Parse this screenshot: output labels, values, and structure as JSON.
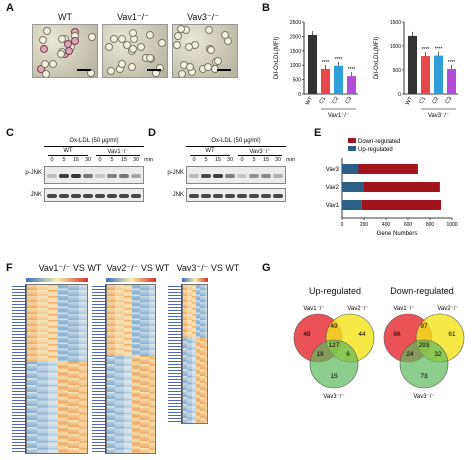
{
  "panels": {
    "A": "A",
    "B": "B",
    "C": "C",
    "D": "D",
    "E": "E",
    "F": "F",
    "G": "G"
  },
  "panel_a": {
    "labels": [
      "WT",
      "Vav1⁻/⁻",
      "Vav3⁻/⁻"
    ]
  },
  "panel_b": {
    "left": {
      "ylabel": "DiI-OxLDL(MFI)",
      "yticks": [
        "0",
        "500",
        "1000",
        "1500",
        "2000",
        "2500"
      ],
      "categories": [
        "WT",
        "C1",
        "C2",
        "C3"
      ],
      "values": [
        2050,
        870,
        980,
        620
      ],
      "colors": [
        "#333333",
        "#e8474c",
        "#2f9fd8",
        "#b24bd6"
      ],
      "stars": [
        "",
        "****",
        "****",
        "****"
      ],
      "group_label": "Vav1⁻/⁻"
    },
    "right": {
      "ylabel": "DiI-OxLDL(MFI)",
      "yticks": [
        "0",
        "500",
        "1000",
        "1500"
      ],
      "categories": [
        "WT",
        "C1",
        "C2",
        "C3"
      ],
      "values": [
        1210,
        790,
        800,
        520
      ],
      "colors": [
        "#333333",
        "#e8474c",
        "#2f9fd8",
        "#b24bd6"
      ],
      "stars": [
        "",
        "****",
        "****",
        "****"
      ],
      "group_label": "Vav3⁻/⁻"
    }
  },
  "panel_c": {
    "treatment": "Ox-LDL (50 μg/ml)",
    "groups": [
      "WT",
      "Vav1⁻/⁻"
    ],
    "times": [
      "0",
      "5",
      "15",
      "30",
      "0",
      "5",
      "15",
      "30"
    ],
    "unit": "min",
    "rows": [
      "p-JNK",
      "JNK"
    ]
  },
  "panel_d": {
    "treatment": "Ox-LDL (50 μg/ml)",
    "groups": [
      "WT",
      "Vav3⁻/⁻"
    ],
    "times": [
      "0",
      "5",
      "15",
      "30",
      "0",
      "5",
      "15",
      "30"
    ],
    "unit": "min",
    "rows": [
      "p-JNK",
      "JNK"
    ]
  },
  "chart_data": [
    {
      "type": "bar",
      "title": "",
      "categories": [
        "WT",
        "C1",
        "C2",
        "C3"
      ],
      "values": [
        2050,
        870,
        980,
        620
      ],
      "ylabel": "DiI-OxLDL(MFI)",
      "ylim": [
        0,
        2500
      ]
    },
    {
      "type": "bar",
      "title": "",
      "categories": [
        "WT",
        "C1",
        "C2",
        "C3"
      ],
      "values": [
        1210,
        790,
        800,
        520
      ],
      "ylabel": "DiI-OxLDL(MFI)",
      "ylim": [
        0,
        1500
      ]
    },
    {
      "type": "bar",
      "orientation": "horizontal-stacked",
      "categories": [
        "Vav3",
        "Vav2",
        "Vav1"
      ],
      "series": [
        {
          "name": "Up-regulated",
          "values": [
            150,
            200,
            180
          ],
          "color": "#2b5f86"
        },
        {
          "name": "Down-regulated",
          "values": [
            540,
            690,
            720
          ],
          "color": "#a3131b"
        }
      ],
      "xlabel": "Gene Numbers",
      "xticks": [
        "0",
        "200",
        "400",
        "600",
        "800",
        "1000"
      ],
      "xlim": [
        0,
        1000
      ],
      "legend": "top"
    }
  ],
  "panel_f": {
    "titles": [
      "Vav1⁻/⁻ VS WT",
      "Vav2⁻/⁻ VS WT",
      "Vav3⁻/⁻ VS WT"
    ]
  },
  "panel_g": {
    "up": {
      "title": "Up-regulated",
      "sets": [
        "Vav1⁻/⁻",
        "Vav2⁻/⁻",
        "Vav3⁻/⁻"
      ],
      "regions": {
        "only1": "48",
        "only2": "44",
        "only3": "15",
        "v12": "49",
        "v13": "19",
        "v23": "6",
        "all": "127"
      }
    },
    "down": {
      "title": "Down-regulated",
      "sets": [
        "Vav1⁻/⁻",
        "Vav2⁻/⁻",
        "Vav3⁻/⁻"
      ],
      "regions": {
        "only1": "66",
        "only2": "61",
        "only3": "73",
        "v12": "97",
        "v13": "24",
        "v23": "32",
        "all": "293"
      }
    },
    "colors": {
      "set1": "#e8343a",
      "set2": "#f4e418",
      "set3": "#5cb85c"
    }
  }
}
